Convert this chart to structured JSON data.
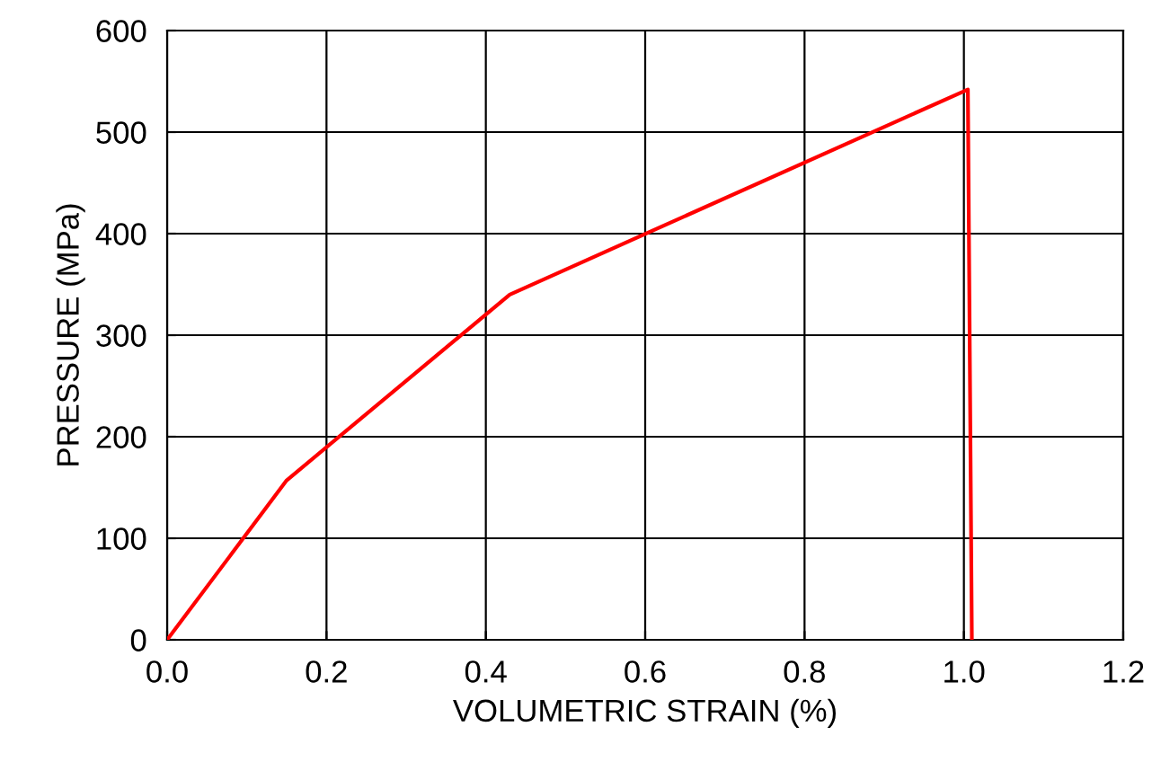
{
  "chart_data": {
    "type": "line",
    "xlabel": "VOLUMETRIC STRAIN (%)",
    "ylabel": "PRESSURE (MPa)",
    "series": [
      {
        "color": "#ff0000",
        "x": [
          0,
          0.15,
          0.43,
          1.005,
          1.01
        ],
        "values": [
          0,
          157,
          340,
          542,
          0
        ]
      }
    ],
    "xlim": [
      0,
      1.2
    ],
    "xticks": [
      {
        "value": 0,
        "label": "0.0"
      },
      0.2,
      0.4,
      0.6,
      0.8,
      {
        "value": 1.0,
        "label": "1.0"
      },
      1.2
    ],
    "ylim": [
      0,
      600
    ],
    "yticks": [
      0,
      100,
      200,
      300,
      400,
      500,
      600
    ],
    "grid": true,
    "marker": "none",
    "line_style": "solid"
  }
}
